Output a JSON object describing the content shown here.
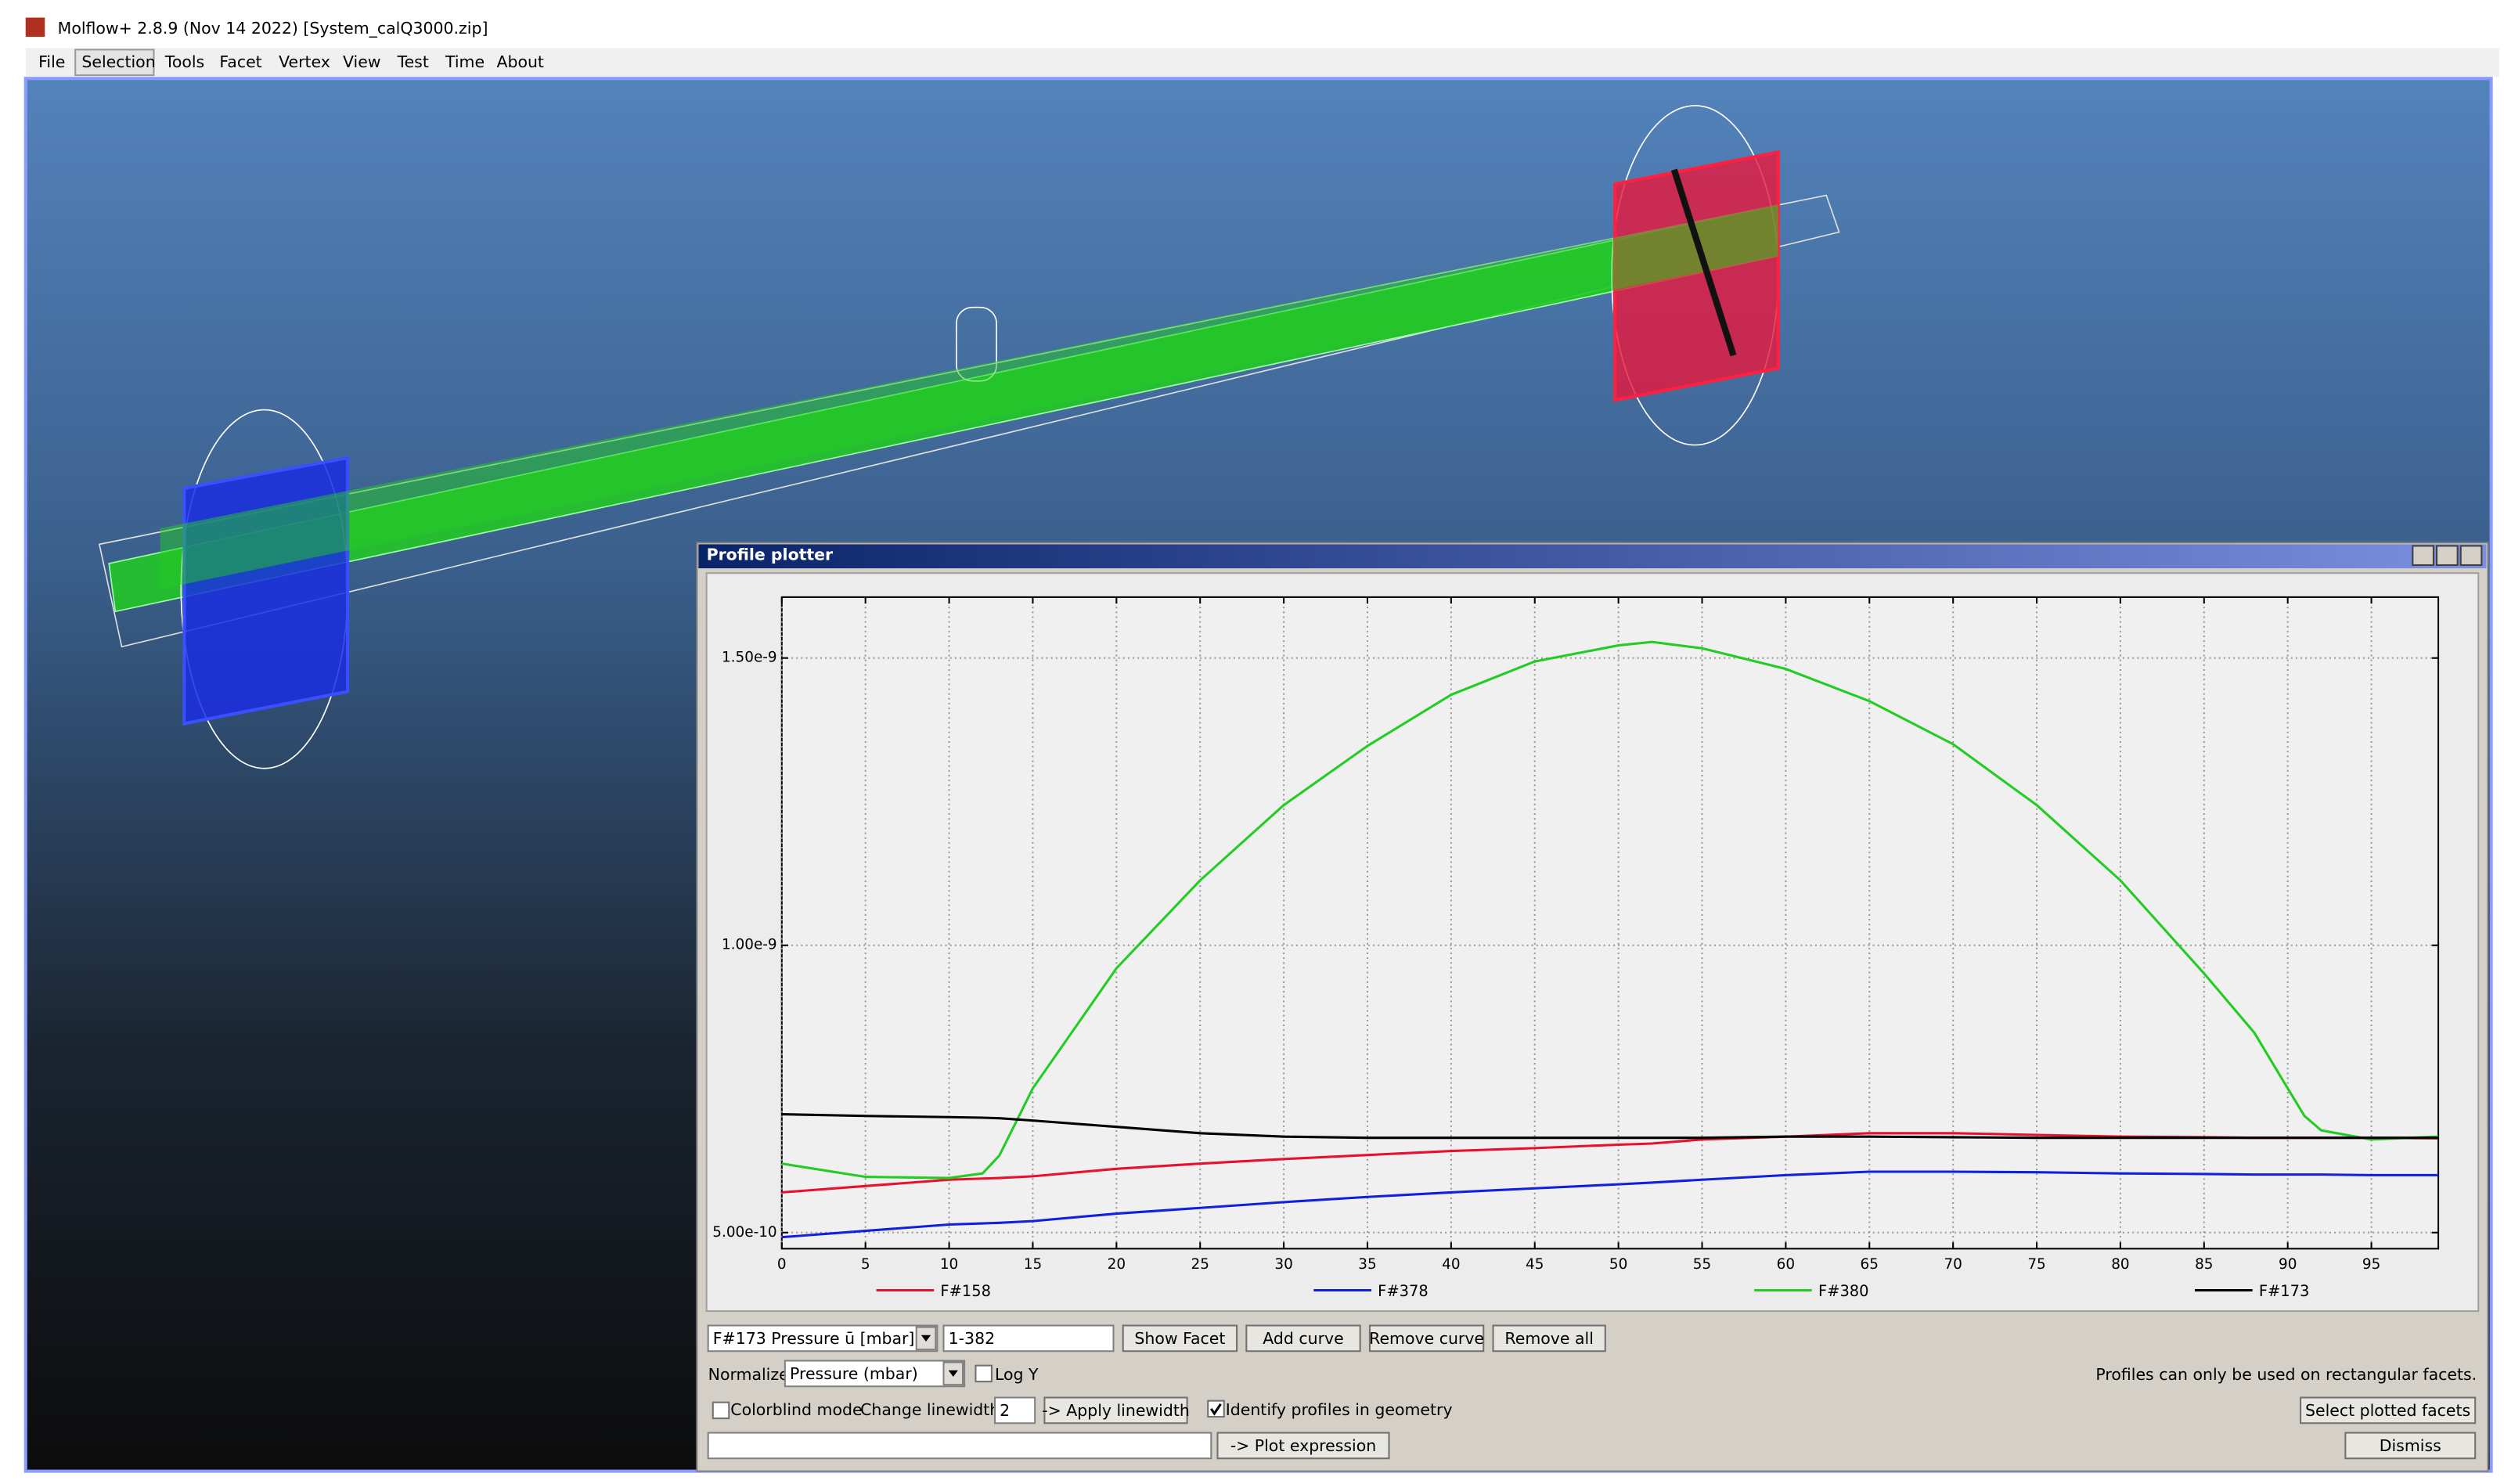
{
  "window": {
    "title": "Molflow+ 2.8.9 (Nov 14 2022) [System_calQ3000.zip]"
  },
  "menu": [
    "File",
    "Selection",
    "Tools",
    "Facet",
    "Vertex",
    "View",
    "Test",
    "Time",
    "About"
  ],
  "panel": {
    "title": "Profile plotter",
    "controls": {
      "profile_select": "F#173 Pressure ū [mbar]",
      "facet_range": "1-382",
      "buttons_row1": [
        "Show Facet",
        "Add curve",
        "Remove curve",
        "Remove all"
      ],
      "normalize_label": "Normalize:",
      "normalize_select": "Pressure (mbar)",
      "log_y_label": "Log Y",
      "note": "Profiles can only be used on rectangular facets.",
      "colorblind_label": "Colorblind mode",
      "linewidth_label": "Change linewidth:",
      "linewidth_value": "2",
      "apply_linewidth": "-> Apply linewidth",
      "identify_label": "Identify profiles in geometry",
      "identify_checked": true,
      "colorblind_checked": false,
      "select_plotted": "Select plotted facets",
      "plot_expression": "-> Plot expression",
      "dismiss": "Dismiss"
    }
  },
  "chart_data": {
    "type": "line",
    "log_y": false,
    "grid": true,
    "x": [
      0,
      5,
      10,
      12,
      13,
      15,
      20,
      25,
      30,
      35,
      40,
      45,
      50,
      52,
      55,
      60,
      65,
      70,
      75,
      80,
      85,
      88,
      90,
      91,
      92,
      95,
      99
    ],
    "xlim": [
      0,
      99
    ],
    "xticks": [
      0,
      5,
      10,
      15,
      20,
      25,
      30,
      35,
      40,
      45,
      50,
      55,
      60,
      65,
      70,
      75,
      80,
      85,
      90,
      95
    ],
    "ylim": [
      4.72e-10,
      1.606e-09
    ],
    "yticks": [
      {
        "value": 5e-10,
        "label": "5.00e-10"
      },
      {
        "value": 1e-09,
        "label": "1.00e-9"
      },
      {
        "value": 1.5e-09,
        "label": "1.50e-9"
      }
    ],
    "series": [
      {
        "name": "F#158",
        "color": "#e8102c",
        "values": [
          5.7e-10,
          5.81e-10,
          5.92e-10,
          5.94e-10,
          5.95e-10,
          5.98e-10,
          6.11e-10,
          6.2e-10,
          6.28e-10,
          6.35e-10,
          6.42e-10,
          6.47e-10,
          6.53e-10,
          6.55e-10,
          6.62e-10,
          6.67e-10,
          6.73e-10,
          6.73e-10,
          6.7e-10,
          6.67e-10,
          6.66e-10,
          6.65e-10,
          6.65e-10,
          6.65e-10,
          6.65e-10,
          6.65e-10,
          6.64e-10
        ]
      },
      {
        "name": "F#378",
        "color": "#1020e0",
        "values": [
          4.92e-10,
          5.03e-10,
          5.14e-10,
          5.16e-10,
          5.17e-10,
          5.2e-10,
          5.33e-10,
          5.43e-10,
          5.53e-10,
          5.62e-10,
          5.7e-10,
          5.77e-10,
          5.84e-10,
          5.87e-10,
          5.92e-10,
          6e-10,
          6.06e-10,
          6.06e-10,
          6.05e-10,
          6.03e-10,
          6.02e-10,
          6.01e-10,
          6.01e-10,
          6.01e-10,
          6.01e-10,
          6e-10,
          6e-10
        ]
      },
      {
        "name": "F#380",
        "color": "#22cc22",
        "values": [
          6.2e-10,
          5.97e-10,
          5.95e-10,
          6.03e-10,
          6.34e-10,
          7.51e-10,
          9.6e-10,
          1.113e-09,
          1.244e-09,
          1.347e-09,
          1.436e-09,
          1.494e-09,
          1.522e-09,
          1.528e-09,
          1.517e-09,
          1.481e-09,
          1.425e-09,
          1.35e-09,
          1.244e-09,
          1.113e-09,
          9.51e-10,
          8.48e-10,
          7.51e-10,
          7.03e-10,
          6.78e-10,
          6.62e-10,
          6.67e-10
        ]
      },
      {
        "name": "F#173",
        "color": "#000000",
        "values": [
          7.06e-10,
          7.03e-10,
          7.01e-10,
          7e-10,
          6.99e-10,
          6.95e-10,
          6.84e-10,
          6.73e-10,
          6.67e-10,
          6.65e-10,
          6.65e-10,
          6.65e-10,
          6.65e-10,
          6.65e-10,
          6.65e-10,
          6.67e-10,
          6.67e-10,
          6.66e-10,
          6.65e-10,
          6.65e-10,
          6.65e-10,
          6.65e-10,
          6.65e-10,
          6.65e-10,
          6.65e-10,
          6.65e-10,
          6.65e-10
        ]
      }
    ]
  }
}
